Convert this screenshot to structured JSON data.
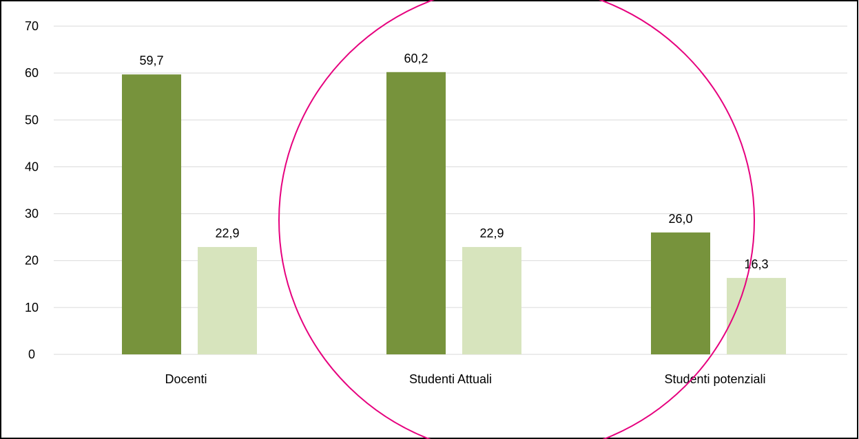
{
  "chart_data": {
    "type": "bar",
    "categories": [
      "Docenti",
      "Studenti Attuali",
      "Studenti potenziali"
    ],
    "series": [
      {
        "values": [
          59.7,
          60.2,
          26.0
        ],
        "labels": [
          "59,7",
          "60,2",
          "26,0"
        ],
        "color": "#77933c"
      },
      {
        "values": [
          22.9,
          22.9,
          16.3
        ],
        "labels": [
          "22,9",
          "22,9",
          "16,3"
        ],
        "color": "#d7e4bd"
      }
    ],
    "ylim": [
      0,
      70
    ],
    "yticks": [
      0,
      10,
      20,
      30,
      40,
      50,
      60,
      70
    ],
    "ytick_labels": [
      "0",
      "10",
      "20",
      "30",
      "40",
      "50",
      "60",
      "70"
    ],
    "grid": true,
    "title": "",
    "xlabel": "",
    "ylabel": "",
    "annotation_color": "#e6007e",
    "gridline_color": "#d9d9d9",
    "frame_color": "#000000"
  }
}
